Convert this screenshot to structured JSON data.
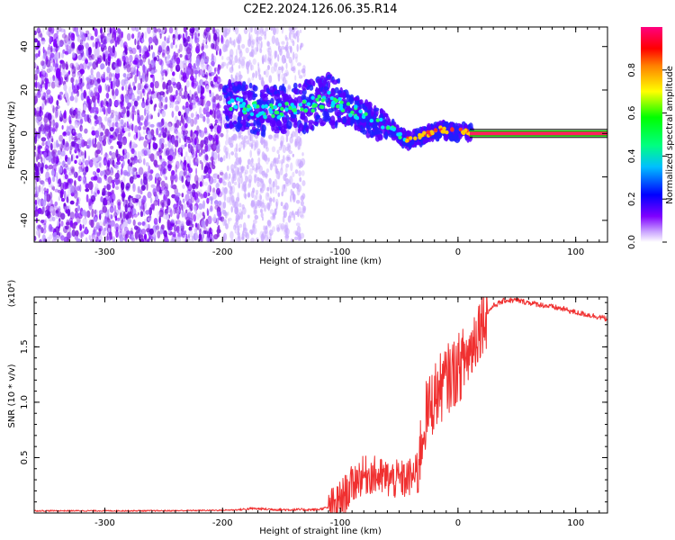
{
  "title": "C2E2.2024.126.06.35.R14",
  "chart_data": [
    {
      "type": "heatmap",
      "xlabel": "Height of straight line (km)",
      "ylabel": "Frequency (Hz)",
      "xlim": [
        -360,
        127
      ],
      "ylim": [
        -50,
        49
      ],
      "xticks": [
        -300,
        -200,
        -100,
        0,
        100
      ],
      "yticks": [
        -40,
        -20,
        0,
        20,
        40
      ],
      "colorbar": {
        "label": "Normalized spectral amplitude",
        "range": [
          0,
          1
        ],
        "ticks": [
          "0.0",
          "0.2",
          "0.4",
          "0.6",
          "0.8"
        ],
        "colors": [
          "#ffffff",
          "#7f00ff",
          "#0000ff",
          "#00ffff",
          "#00ff00",
          "#ffff00",
          "#ff0000",
          "#ff0080"
        ]
      },
      "dense_noise_region": [
        -360,
        -200
      ],
      "sparse_noise_region": [
        -200,
        -130
      ],
      "ridge": {
        "x": [
          -198,
          -180,
          -160,
          -140,
          -120,
          -110,
          -100,
          -85,
          -70,
          -55,
          -45,
          -35,
          -25,
          -15,
          -5,
          5,
          12
        ],
        "y": [
          14,
          12,
          10,
          11,
          14,
          16,
          13,
          9,
          5,
          2,
          -3,
          -2,
          0,
          2,
          1,
          1,
          0
        ]
      },
      "stable_line": {
        "x": [
          10,
          127
        ],
        "y": 0
      }
    },
    {
      "type": "line",
      "xlabel": "Height of straight line (km)",
      "ylabel": "SNR (10 * v/v)",
      "yunit_label": "(x10⁴)",
      "xlim": [
        -360,
        127
      ],
      "ylim": [
        0,
        1.95
      ],
      "xticks": [
        -300,
        -200,
        -100,
        0,
        100
      ],
      "yticks": [
        "0.5",
        "1.0",
        "1.5"
      ],
      "color": "#f03030",
      "series": [
        {
          "x": [
            -360,
            -300,
            -250,
            -200,
            -185,
            -175,
            -150,
            -120,
            -105,
            -95,
            -85,
            -75,
            -65,
            -55,
            -45,
            -35,
            -28,
            -20,
            -10,
            0,
            10,
            20,
            30,
            40,
            50,
            60,
            70,
            80,
            90,
            100,
            110,
            120,
            127
          ],
          "y": [
            0.02,
            0.02,
            0.02,
            0.025,
            0.03,
            0.04,
            0.03,
            0.03,
            0.06,
            0.18,
            0.32,
            0.35,
            0.32,
            0.3,
            0.3,
            0.35,
            0.85,
            1.05,
            1.2,
            1.3,
            1.45,
            1.75,
            1.87,
            1.92,
            1.92,
            1.9,
            1.88,
            1.86,
            1.84,
            1.81,
            1.79,
            1.77,
            1.75
          ]
        }
      ]
    }
  ]
}
